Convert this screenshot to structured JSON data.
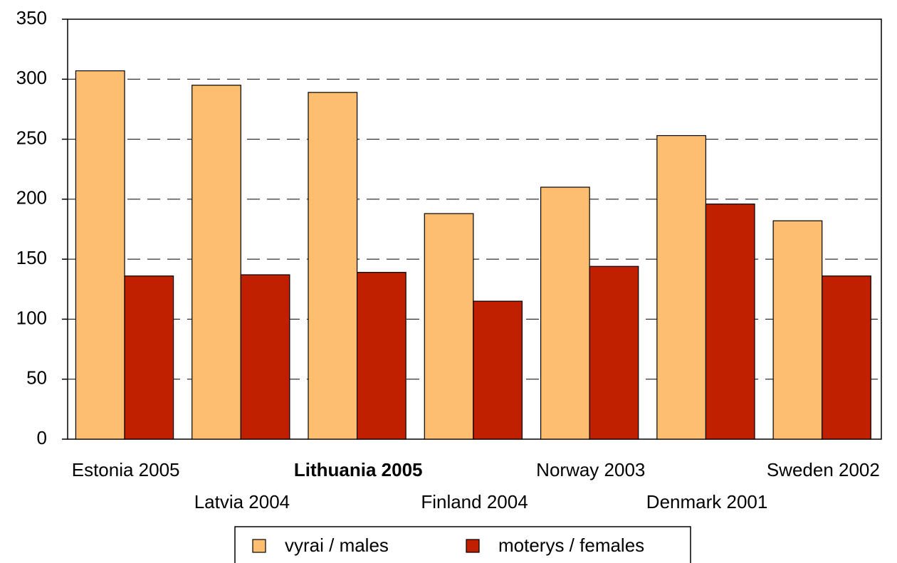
{
  "chart_data": {
    "type": "bar",
    "categories": [
      "Estonia 2005",
      "Latvia 2004",
      "Lithuania 2005",
      "Finland 2004",
      "Norway 2003",
      "Denmark 2001",
      "Sweden 2002"
    ],
    "series": [
      {
        "name": "vyrai / males",
        "color": "#fdbf6f",
        "values": [
          307,
          295,
          289,
          188,
          210,
          253,
          182
        ]
      },
      {
        "name": "moterys / females",
        "color": "#c02000",
        "values": [
          136,
          137,
          139,
          115,
          144,
          196,
          136
        ]
      }
    ],
    "highlight_index": 2,
    "ylim": [
      0,
      350
    ],
    "yticks": [
      0,
      50,
      100,
      150,
      200,
      250,
      300,
      350
    ],
    "grid": true
  }
}
